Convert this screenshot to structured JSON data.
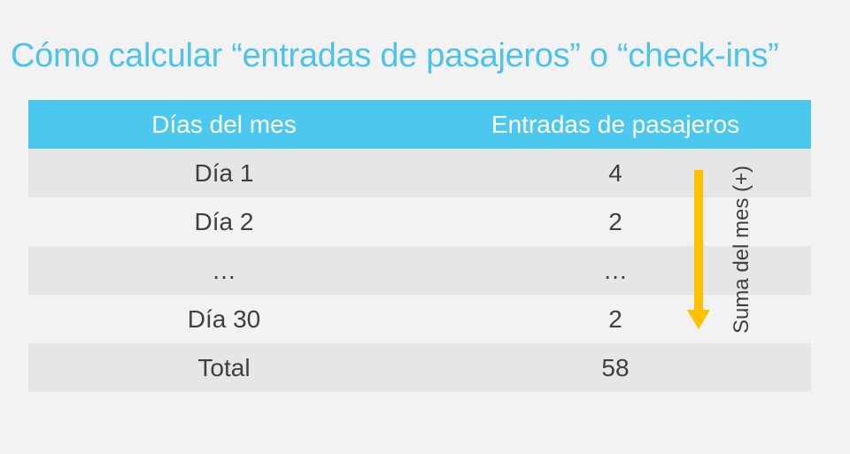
{
  "title": "Cómo calcular “entradas de pasajeros” o “check-ins”",
  "table": {
    "headers": [
      "Días del mes",
      "Entradas de pasajeros"
    ],
    "rows": [
      [
        "Día 1",
        "4"
      ],
      [
        "Día 2",
        "2"
      ],
      [
        "…",
        "…"
      ],
      [
        "Día 30",
        "2"
      ],
      [
        "Total",
        "58"
      ]
    ]
  },
  "side_note": "Suma del mes (+)",
  "colors": {
    "accent": "#4cc3ea",
    "header_bg": "#4cc8ef",
    "arrow": "#ffc000",
    "row_shade": "#e6e6e6",
    "background": "#f2f2f2"
  }
}
